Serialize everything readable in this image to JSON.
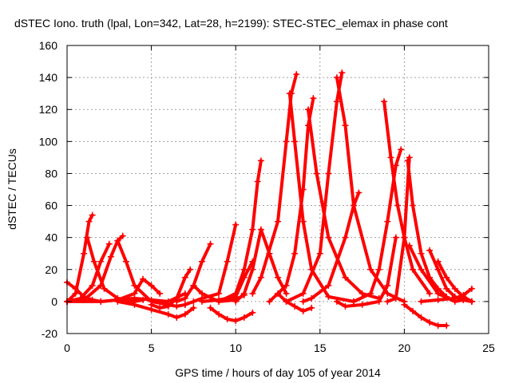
{
  "chart_data": {
    "type": "line",
    "title": "dSTEC Iono. truth (lpal, Lon=342, Lat=28, h=2199): STEC-STEC_elemax in phase cont",
    "xlabel": "GPS time / hours of day 105 of year 2014",
    "ylabel": "dSTEC  / TECUs",
    "xlim": [
      0,
      25
    ],
    "ylim": [
      -20,
      160
    ],
    "xticks": [
      0,
      5,
      10,
      15,
      20,
      25
    ],
    "yticks": [
      -20,
      0,
      20,
      40,
      60,
      80,
      100,
      120,
      140,
      160
    ],
    "grid": true,
    "marker": "+",
    "color": "#ff0000",
    "series": [
      {
        "x": [
          0.0,
          0.5,
          1.0,
          1.3,
          1.5
        ],
        "y": [
          0,
          5,
          30,
          50,
          54
        ]
      },
      {
        "x": [
          1.2,
          1.6,
          2.2,
          3.0,
          4.0,
          4.5
        ],
        "y": [
          40,
          25,
          8,
          2,
          0,
          1
        ]
      },
      {
        "x": [
          0.0,
          0.8,
          1.5,
          2.0,
          2.5
        ],
        "y": [
          0,
          2,
          10,
          25,
          36
        ]
      },
      {
        "x": [
          0.0,
          0.5,
          1.0,
          1.5,
          2.0
        ],
        "y": [
          12,
          8,
          3,
          1,
          0
        ]
      },
      {
        "x": [
          0.0,
          1.0,
          2.0,
          2.6,
          3.0,
          3.3
        ],
        "y": [
          0,
          1,
          10,
          28,
          38,
          41
        ]
      },
      {
        "x": [
          3.0,
          3.5,
          4.0,
          5.0,
          6.5,
          7.0
        ],
        "y": [
          38,
          25,
          10,
          0,
          -3,
          -2
        ]
      },
      {
        "x": [
          2.0,
          3.0,
          4.0,
          4.5,
          5.0,
          5.5
        ],
        "y": [
          0,
          1,
          5,
          14,
          10,
          5
        ]
      },
      {
        "x": [
          0.0,
          2.0,
          4.0,
          5.0,
          6.0,
          7.0
        ],
        "y": [
          0,
          0,
          2,
          1,
          0,
          5
        ]
      },
      {
        "x": [
          3.0,
          4.0,
          5.0,
          6.0,
          6.5,
          7.0,
          7.5
        ],
        "y": [
          0,
          -2,
          -5,
          -8,
          -10,
          -8,
          -4
        ]
      },
      {
        "x": [
          5.0,
          5.5,
          6.0,
          6.5,
          7.0,
          7.3
        ],
        "y": [
          -2,
          -4,
          -3,
          2,
          15,
          20
        ]
      },
      {
        "x": [
          6.5,
          7.0,
          7.5,
          8.0,
          8.5
        ],
        "y": [
          0,
          2,
          10,
          25,
          36
        ]
      },
      {
        "x": [
          7.0,
          7.5,
          8.0,
          9.0,
          9.5,
          10.0
        ],
        "y": [
          -2,
          0,
          2,
          5,
          25,
          48
        ]
      },
      {
        "x": [
          7.5,
          8.0,
          9.0,
          10.0,
          10.5
        ],
        "y": [
          10,
          5,
          0,
          1,
          4
        ]
      },
      {
        "x": [
          8.5,
          9.0,
          9.5,
          10.0,
          10.5,
          11.0
        ],
        "y": [
          -4,
          -8,
          -11,
          -12,
          -10,
          -7
        ]
      },
      {
        "x": [
          8.0,
          9.0,
          10.0,
          10.5,
          11.0
        ],
        "y": [
          0,
          1,
          3,
          15,
          25
        ]
      },
      {
        "x": [
          9.0,
          10.0,
          10.5,
          11.0,
          11.3,
          11.5
        ],
        "y": [
          0,
          5,
          20,
          45,
          75,
          88
        ]
      },
      {
        "x": [
          10.0,
          10.5,
          11.0,
          11.5,
          12.0,
          12.5,
          13.0
        ],
        "y": [
          0,
          5,
          20,
          45,
          30,
          15,
          5
        ]
      },
      {
        "x": [
          11.0,
          11.5,
          12.5,
          13.0,
          13.3,
          13.6
        ],
        "y": [
          5,
          15,
          50,
          100,
          130,
          142
        ]
      },
      {
        "x": [
          13.2,
          13.5,
          14.0,
          14.5,
          15.5,
          17.0
        ],
        "y": [
          130,
          100,
          50,
          20,
          3,
          0
        ]
      },
      {
        "x": [
          12.5,
          13.0,
          13.5,
          14.0,
          14.5
        ],
        "y": [
          5,
          0,
          -3,
          -6,
          -4
        ]
      },
      {
        "x": [
          12.0,
          13.0,
          13.5,
          14.0,
          14.3,
          14.6
        ],
        "y": [
          0,
          10,
          30,
          70,
          110,
          127
        ]
      },
      {
        "x": [
          14.3,
          14.8,
          15.5,
          16.5,
          17.5,
          18.5
        ],
        "y": [
          120,
          80,
          40,
          15,
          5,
          2
        ]
      },
      {
        "x": [
          13.0,
          14.0,
          15.0,
          15.5,
          16.0,
          16.3
        ],
        "y": [
          0,
          5,
          30,
          80,
          125,
          143
        ]
      },
      {
        "x": [
          16.0,
          16.5,
          17.0,
          18.0,
          19.0,
          20.0
        ],
        "y": [
          140,
          110,
          60,
          20,
          5,
          0
        ]
      },
      {
        "x": [
          14.0,
          14.5,
          15.5,
          16.5,
          17.0,
          17.3
        ],
        "y": [
          0,
          2,
          10,
          40,
          60,
          68
        ]
      },
      {
        "x": [
          16.0,
          16.5,
          17.5,
          18.5,
          19.0,
          19.5
        ],
        "y": [
          0,
          -3,
          -2,
          0,
          10,
          40
        ]
      },
      {
        "x": [
          17.0,
          18.0,
          18.5,
          19.0,
          19.5,
          19.8
        ],
        "y": [
          0,
          5,
          20,
          50,
          85,
          95
        ]
      },
      {
        "x": [
          18.8,
          19.2,
          19.6,
          20.0,
          20.5,
          21.5
        ],
        "y": [
          125,
          90,
          60,
          40,
          20,
          5
        ]
      },
      {
        "x": [
          19.0,
          19.5,
          20.0,
          20.3
        ],
        "y": [
          0,
          2,
          40,
          90
        ]
      },
      {
        "x": [
          20.2,
          20.5,
          21.0,
          21.5,
          22.0,
          22.5
        ],
        "y": [
          88,
          60,
          30,
          15,
          8,
          3
        ]
      },
      {
        "x": [
          20.0,
          20.5,
          21.0,
          21.5,
          22.0,
          22.5
        ],
        "y": [
          -2,
          -6,
          -10,
          -13,
          -15,
          -15
        ]
      },
      {
        "x": [
          20.3,
          21.0,
          22.0,
          23.0,
          23.5,
          24.0
        ],
        "y": [
          35,
          20,
          5,
          0,
          1,
          0
        ]
      },
      {
        "x": [
          21.5,
          22.0,
          22.5,
          23.0,
          23.5,
          24.0
        ],
        "y": [
          32,
          20,
          8,
          3,
          1,
          0
        ]
      },
      {
        "x": [
          21.0,
          22.0,
          23.0,
          23.5,
          24.0
        ],
        "y": [
          0,
          1,
          2,
          4,
          8
        ]
      },
      {
        "x": [
          22.0,
          22.5,
          23.0,
          23.5,
          24.0
        ],
        "y": [
          25,
          15,
          8,
          3,
          0
        ]
      }
    ]
  }
}
